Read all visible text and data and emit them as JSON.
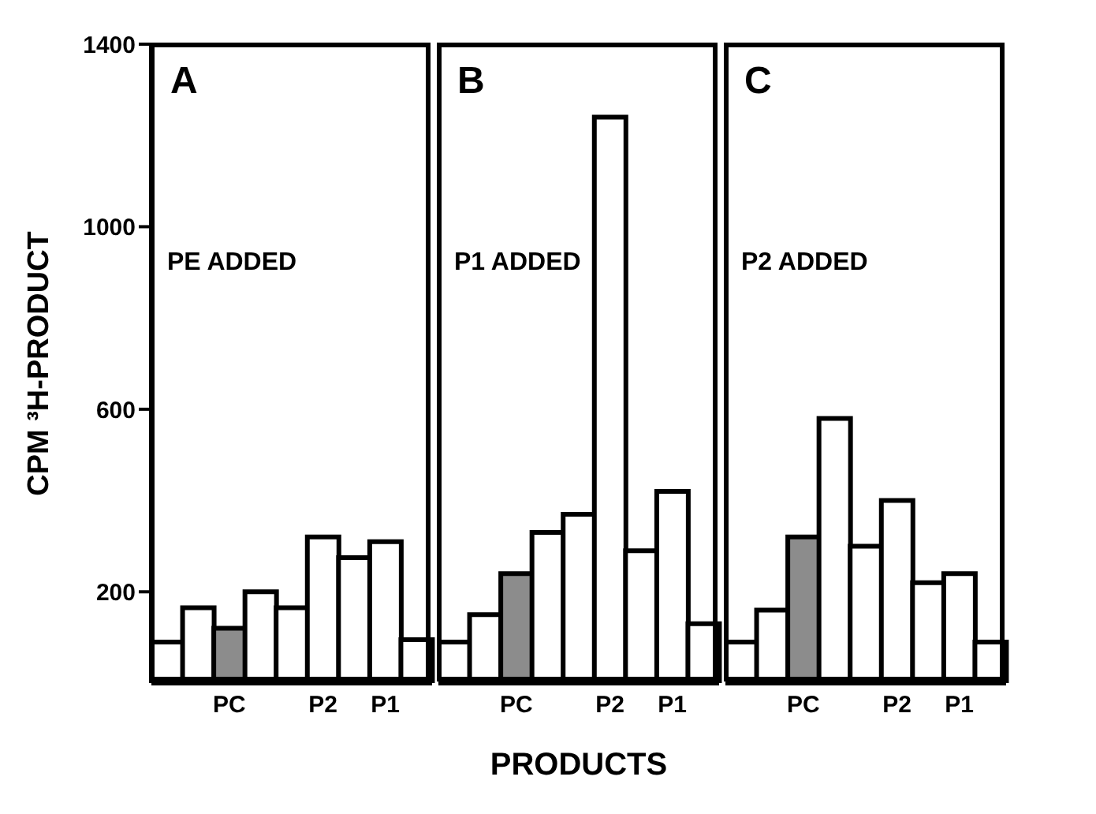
{
  "chart_data": [
    {
      "type": "bar",
      "title": "A",
      "ylabel": "CPM ³H-PRODUCT",
      "annotations": [
        "PE ADDED"
      ],
      "categories": [
        null,
        null,
        "PC",
        null,
        null,
        "P2",
        null,
        "P1",
        null
      ],
      "values": [
        90,
        165,
        120,
        200,
        165,
        320,
        275,
        310,
        95
      ],
      "colors": [
        "#ffffff",
        "#ffffff",
        "#8c8c8c",
        "#ffffff",
        "#ffffff",
        "#ffffff",
        "#ffffff",
        "#ffffff",
        "#ffffff"
      ],
      "ylim": [
        0,
        1400
      ],
      "yticks": [
        200,
        600,
        1000,
        1400
      ]
    },
    {
      "type": "bar",
      "title": "B",
      "xlabel": "PRODUCTS",
      "annotations": [
        "P1 ADDED"
      ],
      "categories": [
        null,
        null,
        "PC",
        null,
        null,
        "P2",
        null,
        "P1",
        null
      ],
      "values": [
        90,
        150,
        240,
        330,
        370,
        1240,
        290,
        420,
        130
      ],
      "colors": [
        "#ffffff",
        "#ffffff",
        "#8c8c8c",
        "#ffffff",
        "#ffffff",
        "#ffffff",
        "#ffffff",
        "#ffffff",
        "#ffffff"
      ],
      "ylim": [
        0,
        1400
      ],
      "yticks": [
        200,
        600,
        1000,
        1400
      ],
      "tick_labels": "x"
    },
    {
      "type": "bar",
      "title": "C",
      "annotations": [
        "P2 ADDED"
      ],
      "categories": [
        null,
        null,
        "PC",
        null,
        null,
        "P2",
        null,
        "P1",
        null
      ],
      "values": [
        90,
        160,
        320,
        580,
        300,
        400,
        220,
        240,
        90
      ],
      "colors": [
        "#ffffff",
        "#ffffff",
        "#8c8c8c",
        "#ffffff",
        "#ffffff",
        "#ffffff",
        "#ffffff",
        "#ffffff",
        "#ffffff"
      ],
      "ylim": [
        0,
        1400
      ],
      "yticks": [
        200,
        600,
        1000,
        1400
      ],
      "tick_labels": "x"
    }
  ]
}
